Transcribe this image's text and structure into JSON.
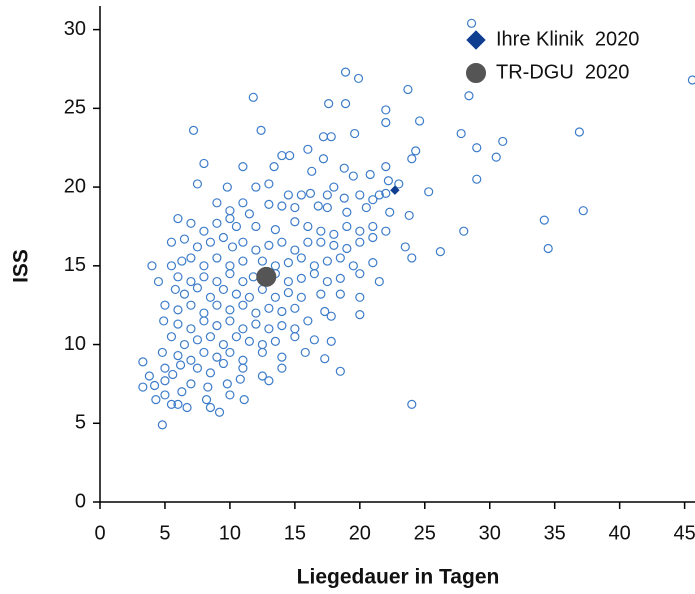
{
  "chart_data": {
    "type": "scatter",
    "xlabel": "Liegedauer in Tagen",
    "ylabel": "ISS",
    "xlim": [
      0,
      45.8
    ],
    "ylim": [
      0,
      31.5
    ],
    "xticks": [
      0,
      5,
      10,
      15,
      20,
      25,
      30,
      35,
      40,
      45
    ],
    "yticks": [
      0,
      5,
      10,
      15,
      20,
      25,
      30
    ],
    "legend": "top-right",
    "series": [
      {
        "color": "#3d7cc9",
        "marker": "circle",
        "filled": false,
        "x": [
          28.6,
          45.6,
          18.9,
          19.9,
          11.8,
          23.7,
          17.6,
          18.9,
          22,
          28.4,
          7.2,
          12.4,
          22,
          24.6,
          17.8,
          17.2,
          19.6,
          27.8,
          31,
          36.9,
          29,
          30.5,
          14,
          14.6,
          16,
          24.3,
          24,
          8,
          11,
          13.4,
          18.8,
          16.3,
          17.2,
          19.5,
          20.8,
          22,
          22.2,
          23,
          25.3,
          29,
          7.5,
          9.8,
          12,
          13,
          14.5,
          15.5,
          16.2,
          17.5,
          18,
          18.8,
          20,
          21,
          21.5,
          22,
          9,
          10,
          11,
          11.5,
          13,
          14,
          15,
          16.8,
          17.5,
          19,
          20.5,
          22.3,
          23.8,
          37.2,
          6,
          7,
          8,
          9,
          10,
          10.5,
          12,
          13.5,
          15,
          16,
          17,
          18,
          19,
          20,
          21,
          22,
          28,
          34.2,
          5.5,
          6.5,
          7.5,
          8.5,
          9.5,
          10.2,
          11,
          12,
          13,
          14,
          15,
          16,
          17,
          18,
          19,
          20,
          21,
          23.5,
          26.2,
          34.5,
          4,
          5.5,
          6.3,
          7,
          8,
          9,
          10,
          11,
          12.5,
          13.5,
          14.5,
          15.5,
          16.5,
          17.5,
          18.5,
          19.5,
          21,
          24,
          4.5,
          6,
          7,
          8,
          9,
          10,
          11,
          11.8,
          13.5,
          14.5,
          15.5,
          16.5,
          17.5,
          18.5,
          20,
          21.5,
          5.8,
          6.5,
          7.5,
          8.5,
          9.5,
          10.5,
          11.5,
          12.5,
          13.5,
          14.5,
          15.5,
          17,
          18.5,
          20,
          5,
          6,
          7,
          8,
          9,
          10,
          11,
          12,
          13,
          14,
          15,
          17.3,
          20,
          4.9,
          6,
          7,
          8,
          9,
          10,
          11,
          12,
          13,
          14,
          15,
          16,
          17.8,
          5.5,
          6.5,
          7.5,
          8.5,
          9.5,
          10.5,
          11.5,
          12.5,
          13.5,
          15,
          16.5,
          17.8,
          4.8,
          6,
          7,
          8,
          9,
          10,
          11,
          12.5,
          14,
          15.8,
          17.3,
          3.3,
          5,
          6.2,
          7.5,
          8.5,
          9.5,
          11,
          12.5,
          14,
          18.5,
          3.8,
          5,
          5.6,
          7,
          8.3,
          9.8,
          10.8,
          13,
          3.3,
          4.2,
          5,
          6.3,
          8.2,
          10,
          11.1,
          4.3,
          5.5,
          6,
          6.7,
          8.5,
          24,
          9.2,
          4.8
        ],
        "y": [
          30.4,
          26.8,
          27.3,
          26.9,
          25.7,
          26.2,
          25.3,
          25.3,
          24.9,
          25.8,
          23.6,
          23.6,
          24.1,
          24.2,
          23.2,
          23.2,
          23.4,
          23.4,
          22.9,
          23.5,
          22.5,
          21.9,
          22,
          22,
          22.4,
          22.3,
          21.8,
          21.5,
          21.3,
          21.3,
          21.2,
          21,
          21.8,
          20.7,
          20.8,
          21.3,
          20.4,
          20.2,
          19.7,
          20.5,
          20.2,
          20,
          20,
          20.2,
          19.5,
          19.5,
          19.6,
          19.5,
          20,
          19.3,
          19.5,
          19.2,
          19.5,
          19.6,
          19,
          18.5,
          19,
          18.3,
          18.9,
          18.8,
          18.7,
          18.8,
          18.7,
          18.4,
          18.7,
          18.4,
          18.2,
          18.5,
          18,
          17.7,
          17.2,
          17.7,
          18,
          17.5,
          17.5,
          17.3,
          17.8,
          17.5,
          17.2,
          17,
          17.5,
          17.2,
          17.5,
          17.2,
          17.2,
          17.9,
          16.5,
          16.7,
          16.2,
          16.5,
          16.8,
          16.2,
          16.5,
          16,
          16.3,
          16.5,
          16,
          16.5,
          16.5,
          16.3,
          16.1,
          16.5,
          16.8,
          16.2,
          15.9,
          16.1,
          15,
          15,
          15.3,
          15.5,
          15,
          15.5,
          15,
          15.3,
          15.3,
          15,
          15.2,
          15.5,
          15,
          15.3,
          15.5,
          15,
          15.2,
          15.5,
          14,
          14.3,
          14,
          14.3,
          14,
          14.5,
          14,
          14.3,
          14.5,
          14,
          14.2,
          14.5,
          14,
          14.2,
          14.5,
          14,
          13.5,
          13.2,
          13.6,
          13,
          13.5,
          13.2,
          13,
          13.5,
          13,
          13.3,
          13,
          13.2,
          13.2,
          13,
          12.5,
          12.2,
          12.5,
          12,
          12.5,
          12.2,
          12.5,
          12,
          12.3,
          12.1,
          12.3,
          12.1,
          11.9,
          11.5,
          11.3,
          11,
          11.5,
          11.2,
          11.5,
          11,
          11.3,
          11,
          11.2,
          11,
          11.5,
          11.8,
          10.5,
          10,
          10.3,
          10.5,
          10,
          10.5,
          10.2,
          10,
          10.2,
          10.5,
          10.3,
          10.2,
          9.5,
          9.3,
          9,
          9.5,
          9.2,
          9.5,
          9,
          9.5,
          9.2,
          9.5,
          9.1,
          8.9,
          8.5,
          8.7,
          8.5,
          8.2,
          8.8,
          8.5,
          8,
          8.5,
          8.3,
          8,
          7.7,
          8.1,
          7.5,
          7.3,
          7.5,
          7.8,
          7.7,
          7.3,
          7.4,
          6.8,
          7,
          6.5,
          6.8,
          6.5,
          6.5,
          6.2,
          6.2,
          6,
          6,
          6.2,
          5.7,
          4.9
        ]
      },
      {
        "name": "Ihre Klinik  2020",
        "color": "#0f3d8f",
        "marker": "diamond",
        "filled": true,
        "x": [
          22.7
        ],
        "y": [
          19.8
        ]
      },
      {
        "name": "TR-DGU  2020",
        "color": "#555555",
        "marker": "circle",
        "filled": true,
        "x": [
          12.8
        ],
        "y": [
          14.3
        ]
      }
    ]
  }
}
